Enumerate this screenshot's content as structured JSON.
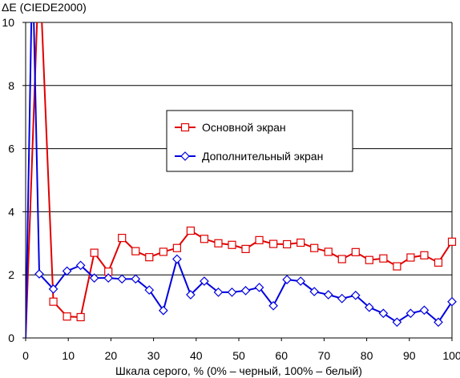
{
  "chart_data": {
    "type": "line",
    "ylabel": "ΔE (CIEDE2000)",
    "xlabel": "Шкала серого, % (0% – черный, 100% – белый)",
    "xlim": [
      0,
      100
    ],
    "ylim": [
      0,
      10
    ],
    "x_ticks": [
      0,
      10,
      20,
      30,
      40,
      50,
      60,
      70,
      80,
      90,
      100
    ],
    "y_ticks": [
      0,
      2,
      4,
      6,
      8,
      10
    ],
    "grid": "horizontal",
    "legend_position": "center-right",
    "series": [
      {
        "name": "Основной экран",
        "color": "#e00000",
        "marker": "square",
        "points": [
          [
            0,
            0
          ],
          [
            3.2,
            12
          ],
          [
            6.5,
            1.15
          ],
          [
            9.7,
            0.68
          ],
          [
            12.9,
            0.66
          ],
          [
            16.1,
            2.7
          ],
          [
            19.4,
            2.1
          ],
          [
            22.6,
            3.17
          ],
          [
            25.8,
            2.75
          ],
          [
            29.0,
            2.56
          ],
          [
            32.3,
            2.73
          ],
          [
            35.5,
            2.85
          ],
          [
            38.7,
            3.4
          ],
          [
            41.9,
            3.14
          ],
          [
            45.2,
            3.0
          ],
          [
            48.4,
            2.95
          ],
          [
            51.6,
            2.82
          ],
          [
            54.8,
            3.1
          ],
          [
            58.1,
            2.98
          ],
          [
            61.3,
            2.97
          ],
          [
            64.5,
            3.02
          ],
          [
            67.7,
            2.85
          ],
          [
            71.0,
            2.73
          ],
          [
            74.2,
            2.5
          ],
          [
            77.4,
            2.72
          ],
          [
            80.6,
            2.47
          ],
          [
            83.9,
            2.52
          ],
          [
            87.1,
            2.27
          ],
          [
            90.3,
            2.55
          ],
          [
            93.5,
            2.62
          ],
          [
            96.8,
            2.39
          ],
          [
            100,
            3.05
          ]
        ]
      },
      {
        "name": "Дополнительный экран",
        "color": "#0000e0",
        "marker": "diamond",
        "points": [
          [
            0,
            0
          ],
          [
            1.6,
            12
          ],
          [
            3.2,
            2.03
          ],
          [
            6.5,
            1.55
          ],
          [
            9.7,
            2.12
          ],
          [
            12.9,
            2.3
          ],
          [
            16.1,
            1.9
          ],
          [
            19.4,
            1.9
          ],
          [
            22.6,
            1.87
          ],
          [
            25.8,
            1.87
          ],
          [
            29.0,
            1.52
          ],
          [
            32.3,
            0.87
          ],
          [
            35.5,
            2.5
          ],
          [
            38.7,
            1.37
          ],
          [
            41.9,
            1.8
          ],
          [
            45.2,
            1.45
          ],
          [
            48.4,
            1.45
          ],
          [
            51.6,
            1.5
          ],
          [
            54.8,
            1.6
          ],
          [
            58.1,
            1.02
          ],
          [
            61.3,
            1.85
          ],
          [
            64.5,
            1.8
          ],
          [
            67.7,
            1.47
          ],
          [
            71.0,
            1.37
          ],
          [
            74.2,
            1.25
          ],
          [
            77.4,
            1.35
          ],
          [
            80.6,
            0.97
          ],
          [
            83.9,
            0.78
          ],
          [
            87.1,
            0.5
          ],
          [
            90.3,
            0.78
          ],
          [
            93.5,
            0.88
          ],
          [
            96.8,
            0.5
          ],
          [
            100,
            1.15
          ]
        ]
      }
    ]
  }
}
